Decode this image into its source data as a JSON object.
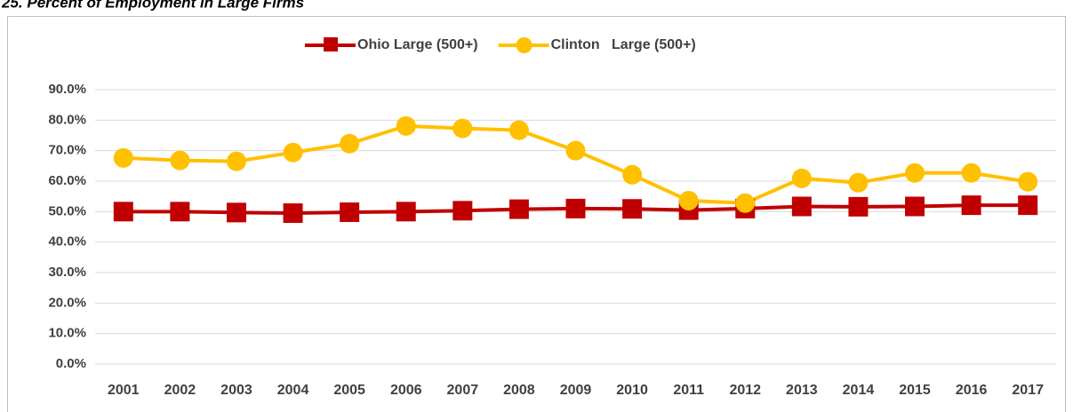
{
  "chart_data": {
    "type": "line",
    "title": "25. Percent of Employment in Large Firms",
    "categories": [
      "2001",
      "2002",
      "2003",
      "2004",
      "2005",
      "2006",
      "2007",
      "2008",
      "2009",
      "2010",
      "2011",
      "2012",
      "2013",
      "2014",
      "2015",
      "2016",
      "2017"
    ],
    "series": [
      {
        "name": "Ohio Large (500+)",
        "color": "#c00000",
        "marker": "square",
        "values": [
          50.0,
          50.0,
          49.7,
          49.5,
          49.8,
          50.0,
          50.3,
          50.8,
          51.0,
          50.9,
          50.5,
          51.0,
          51.7,
          51.6,
          51.7,
          52.1,
          52.1
        ]
      },
      {
        "name": "Clinton   Large (500+)",
        "color": "#ffc000",
        "marker": "circle",
        "values": [
          67.6,
          66.8,
          66.5,
          69.4,
          72.3,
          78.1,
          77.3,
          76.7,
          70.0,
          62.1,
          53.6,
          52.8,
          60.9,
          59.5,
          62.7,
          62.7,
          59.8
        ]
      }
    ],
    "ylim": [
      0,
      90
    ],
    "yticks": [
      {
        "value": 0,
        "label": "0.0%"
      },
      {
        "value": 10,
        "label": "10.0%"
      },
      {
        "value": 20,
        "label": "20.0%"
      },
      {
        "value": 30,
        "label": "30.0%"
      },
      {
        "value": 40,
        "label": "40.0%"
      },
      {
        "value": 50,
        "label": "50.0%"
      },
      {
        "value": 60,
        "label": "60.0%"
      },
      {
        "value": 70,
        "label": "70.0%"
      },
      {
        "value": 80,
        "label": "80.0%"
      },
      {
        "value": 90,
        "label": "90.0%"
      }
    ],
    "grid": true,
    "legend": "top"
  }
}
